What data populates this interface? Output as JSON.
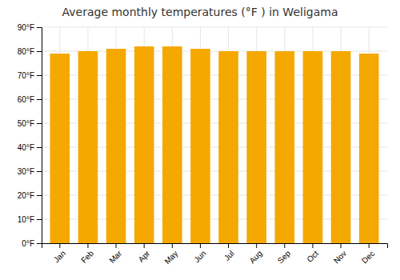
{
  "chart_data": {
    "type": "bar",
    "title": "Average monthly temperatures (°F ) in Weligama",
    "categories": [
      "Jan",
      "Feb",
      "Mar",
      "Apr",
      "May",
      "Jun",
      "Jul",
      "Aug",
      "Sep",
      "Oct",
      "Nov",
      "Dec"
    ],
    "values": [
      79,
      80,
      81,
      82,
      82,
      81,
      80,
      80,
      80,
      80,
      80,
      79
    ],
    "color": "#F5A800",
    "ylim": [
      0,
      90
    ],
    "yticks": [
      {
        "value": 0,
        "label": "0°F"
      },
      {
        "value": 10,
        "label": "10°F"
      },
      {
        "value": 20,
        "label": "20°F"
      },
      {
        "value": 30,
        "label": "30°F"
      },
      {
        "value": 40,
        "label": "40°F"
      },
      {
        "value": 50,
        "label": "50°F"
      },
      {
        "value": 60,
        "label": "60°F"
      },
      {
        "value": 70,
        "label": "70°F"
      },
      {
        "value": 80,
        "label": "80°F"
      },
      {
        "value": 90,
        "label": "90°F"
      }
    ],
    "grid": true
  }
}
